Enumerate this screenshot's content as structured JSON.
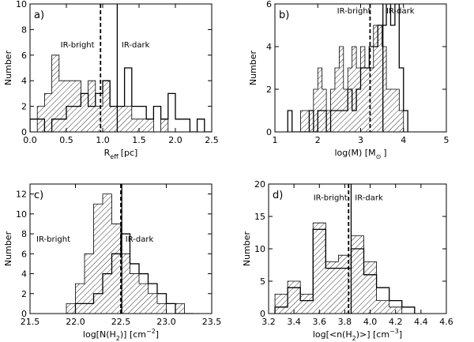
{
  "chart_data": [
    {
      "type": "histogram",
      "panel_label": "a)",
      "xlabel": "R_eff [pc]",
      "xlabel_parts": {
        "main": "R",
        "sub": "eff",
        "unit": "[pc]"
      },
      "ylabel": "Number",
      "xlim": [
        0.0,
        2.5
      ],
      "ylim": [
        0,
        10
      ],
      "xticks": [
        0.0,
        0.5,
        1.0,
        1.5,
        2.0,
        2.5
      ],
      "xtick_labels": [
        "0.0",
        "0.5",
        "1.0",
        "1.5",
        "2.0",
        "2.5"
      ],
      "yticks": [
        0,
        2,
        4,
        6,
        8,
        10
      ],
      "ytick_labels": [
        "0",
        "2",
        "4",
        "6",
        "8",
        "10"
      ],
      "series": [
        {
          "name": "IR-bright",
          "style": "hatched",
          "edges": [
            0.0,
            0.1,
            0.2,
            0.3,
            0.4,
            0.5,
            0.6,
            0.7,
            0.8,
            0.9,
            1.0,
            1.1,
            1.2,
            1.3,
            1.4,
            1.5,
            1.6,
            1.7,
            1.8,
            1.9,
            2.0,
            2.1,
            2.2,
            2.3,
            2.4,
            2.5
          ],
          "values": [
            0,
            2,
            3,
            6,
            4,
            4,
            4,
            3,
            4,
            2,
            4,
            2,
            2,
            2,
            1,
            1,
            1,
            0,
            1,
            0,
            0,
            0,
            0,
            0,
            0
          ]
        },
        {
          "name": "IR-dark",
          "style": "outline",
          "edges": [
            0.0,
            0.1,
            0.2,
            0.3,
            0.4,
            0.5,
            0.6,
            0.7,
            0.8,
            0.9,
            1.0,
            1.1,
            1.2,
            1.3,
            1.4,
            1.5,
            1.6,
            1.7,
            1.8,
            1.9,
            2.0,
            2.1,
            2.2,
            2.3,
            2.4,
            2.5
          ],
          "values": [
            1,
            1,
            0,
            1,
            1,
            2,
            2,
            3,
            2,
            3,
            4,
            2,
            2,
            5,
            2,
            2,
            1,
            2,
            1,
            3,
            1,
            1,
            0,
            1,
            0
          ]
        }
      ],
      "vlines": [
        {
          "x": 0.97,
          "style": "dashed"
        },
        {
          "x": 1.2,
          "style": "solid"
        }
      ],
      "annotations": [
        {
          "text": "IR-bright",
          "x": 0.42,
          "y": 6.6,
          "anchor": "start"
        },
        {
          "text": "IR-dark",
          "x": 1.26,
          "y": 6.6,
          "anchor": "start"
        }
      ]
    },
    {
      "type": "histogram",
      "panel_label": "b)",
      "xlabel": "log(M) [M_sun]",
      "xlabel_parts": {
        "main": "log(M) [M",
        "sub": "⊙",
        "unit": "]"
      },
      "ylabel": "Number",
      "xlim": [
        1,
        5
      ],
      "ylim": [
        0,
        6
      ],
      "xticks": [
        1,
        2,
        3,
        4,
        5
      ],
      "xtick_labels": [
        "1",
        "2",
        "3",
        "4",
        "5"
      ],
      "yticks": [
        0,
        2,
        4,
        6
      ],
      "ytick_labels": [
        "0",
        "2",
        "4",
        "6"
      ],
      "series": [
        {
          "name": "IR-bright",
          "style": "hatched",
          "edges": [
            1.3,
            1.4,
            1.5,
            1.6,
            1.7,
            1.8,
            1.9,
            2.0,
            2.1,
            2.2,
            2.3,
            2.4,
            2.5,
            2.6,
            2.7,
            2.8,
            2.9,
            3.0,
            3.1,
            3.2,
            3.3,
            3.4,
            3.5,
            3.6,
            3.7,
            3.8,
            3.9,
            4.0,
            4.1
          ],
          "values": [
            0,
            0,
            0,
            1,
            1,
            1,
            2,
            3,
            2,
            1,
            2,
            3,
            4,
            2,
            3,
            4,
            3,
            4,
            3,
            3,
            5,
            5,
            4,
            2,
            2,
            2,
            1,
            0
          ]
        },
        {
          "name": "IR-dark",
          "style": "outline",
          "edges": [
            1.3,
            1.4,
            1.5,
            1.6,
            1.7,
            1.8,
            1.9,
            2.0,
            2.1,
            2.2,
            2.3,
            2.4,
            2.5,
            2.6,
            2.7,
            2.8,
            2.9,
            3.0,
            3.1,
            3.2,
            3.3,
            3.4,
            3.5,
            3.6,
            3.7,
            3.8,
            3.9,
            4.0,
            4.1
          ],
          "values": [
            1,
            0,
            0,
            0,
            0,
            1,
            0,
            1,
            1,
            0,
            1,
            1,
            1,
            1,
            2,
            1,
            2,
            3,
            3,
            4,
            4,
            5,
            5,
            6,
            5,
            6,
            3,
            1
          ]
        }
      ],
      "vlines": [
        {
          "x": 3.22,
          "style": "dashed"
        },
        {
          "x": 3.52,
          "style": "solid"
        }
      ],
      "annotations": [
        {
          "text": "IR-bright",
          "x": 2.45,
          "y": 5.55,
          "anchor": "start"
        },
        {
          "text": "IR-dark",
          "x": 3.6,
          "y": 5.55,
          "anchor": "start"
        }
      ]
    },
    {
      "type": "histogram",
      "panel_label": "c)",
      "xlabel": "log[N(H2)] [cm^-2]",
      "xlabel_parts": {
        "main": "log[N(H",
        "sub": "2",
        "mid": ")] [cm",
        "sup": "−2",
        "unit": "]"
      },
      "ylabel": "Number",
      "xlim": [
        21.5,
        23.5
      ],
      "ylim": [
        0,
        13
      ],
      "xticks": [
        21.5,
        22.0,
        22.5,
        23.0,
        23.5
      ],
      "xtick_labels": [
        "21.5",
        "22.0",
        "22.5",
        "23.0",
        "23.5"
      ],
      "yticks": [
        0,
        2,
        4,
        6,
        8,
        10,
        12
      ],
      "ytick_labels": [
        "0",
        "2",
        "4",
        "6",
        "8",
        "10",
        "12"
      ],
      "series": [
        {
          "name": "IR-bright",
          "style": "hatched",
          "edges": [
            21.9,
            22.0,
            22.1,
            22.2,
            22.3,
            22.4,
            22.5,
            22.6,
            22.7,
            22.8,
            22.9,
            23.0,
            23.1,
            23.2,
            23.3
          ],
          "values": [
            1,
            3,
            6,
            11,
            12,
            9,
            6,
            4,
            3,
            2,
            1,
            0,
            1,
            0
          ]
        },
        {
          "name": "IR-dark",
          "style": "outline",
          "edges": [
            21.9,
            22.0,
            22.1,
            22.2,
            22.3,
            22.4,
            22.5,
            22.6,
            22.7,
            22.8,
            22.9,
            23.0,
            23.1,
            23.2,
            23.3
          ],
          "values": [
            0,
            1,
            1,
            2,
            4,
            6,
            8,
            5,
            4,
            3,
            2,
            1,
            0,
            0
          ]
        }
      ],
      "vlines": [
        {
          "x": 22.5,
          "style": "dashed"
        },
        {
          "x": 22.51,
          "style": "solid"
        }
      ],
      "annotations": [
        {
          "text": "IR-bright",
          "x": 21.57,
          "y": 7.2,
          "anchor": "start"
        },
        {
          "text": "IR-dark",
          "x": 22.55,
          "y": 7.2,
          "anchor": "start"
        }
      ]
    },
    {
      "type": "histogram",
      "panel_label": "d)",
      "xlabel": "log[<n(H2)>] [cm^-3]",
      "xlabel_parts": {
        "main": "log[<n(H",
        "sub": "2",
        "mid": ")>] [cm",
        "sup": "−3",
        "unit": "]"
      },
      "ylabel": "Number",
      "xlim": [
        3.2,
        4.6
      ],
      "ylim": [
        0,
        20
      ],
      "xticks": [
        3.2,
        3.4,
        3.6,
        3.8,
        4.0,
        4.2,
        4.4,
        4.6
      ],
      "xtick_labels": [
        "3.2",
        "3.4",
        "3.6",
        "3.8",
        "4.0",
        "4.2",
        "4.4",
        "4.6"
      ],
      "yticks": [
        0,
        5,
        10,
        15,
        20
      ],
      "ytick_labels": [
        "0",
        "5",
        "10",
        "15",
        "20"
      ],
      "series": [
        {
          "name": "IR-bright",
          "style": "hatched",
          "edges": [
            3.25,
            3.35,
            3.45,
            3.55,
            3.65,
            3.75,
            3.85,
            3.95,
            4.05,
            4.15,
            4.25
          ],
          "values": [
            3,
            5,
            3,
            14,
            8,
            9,
            12,
            8,
            2,
            1
          ]
        },
        {
          "name": "IR-dark",
          "style": "outline",
          "edges": [
            3.25,
            3.35,
            3.45,
            3.55,
            3.65,
            3.75,
            3.85,
            3.95,
            4.05,
            4.15,
            4.25,
            4.35
          ],
          "values": [
            1,
            4,
            2,
            13,
            7,
            7,
            10,
            6,
            4,
            2,
            1
          ]
        }
      ],
      "vlines": [
        {
          "x": 3.83,
          "style": "dashed"
        },
        {
          "x": 3.85,
          "style": "solid"
        }
      ],
      "annotations": [
        {
          "text": "IR-bright",
          "x": 3.82,
          "y": 17.5,
          "anchor": "end"
        },
        {
          "text": "IR-dark",
          "x": 3.88,
          "y": 17.5,
          "anchor": "start"
        }
      ]
    }
  ]
}
